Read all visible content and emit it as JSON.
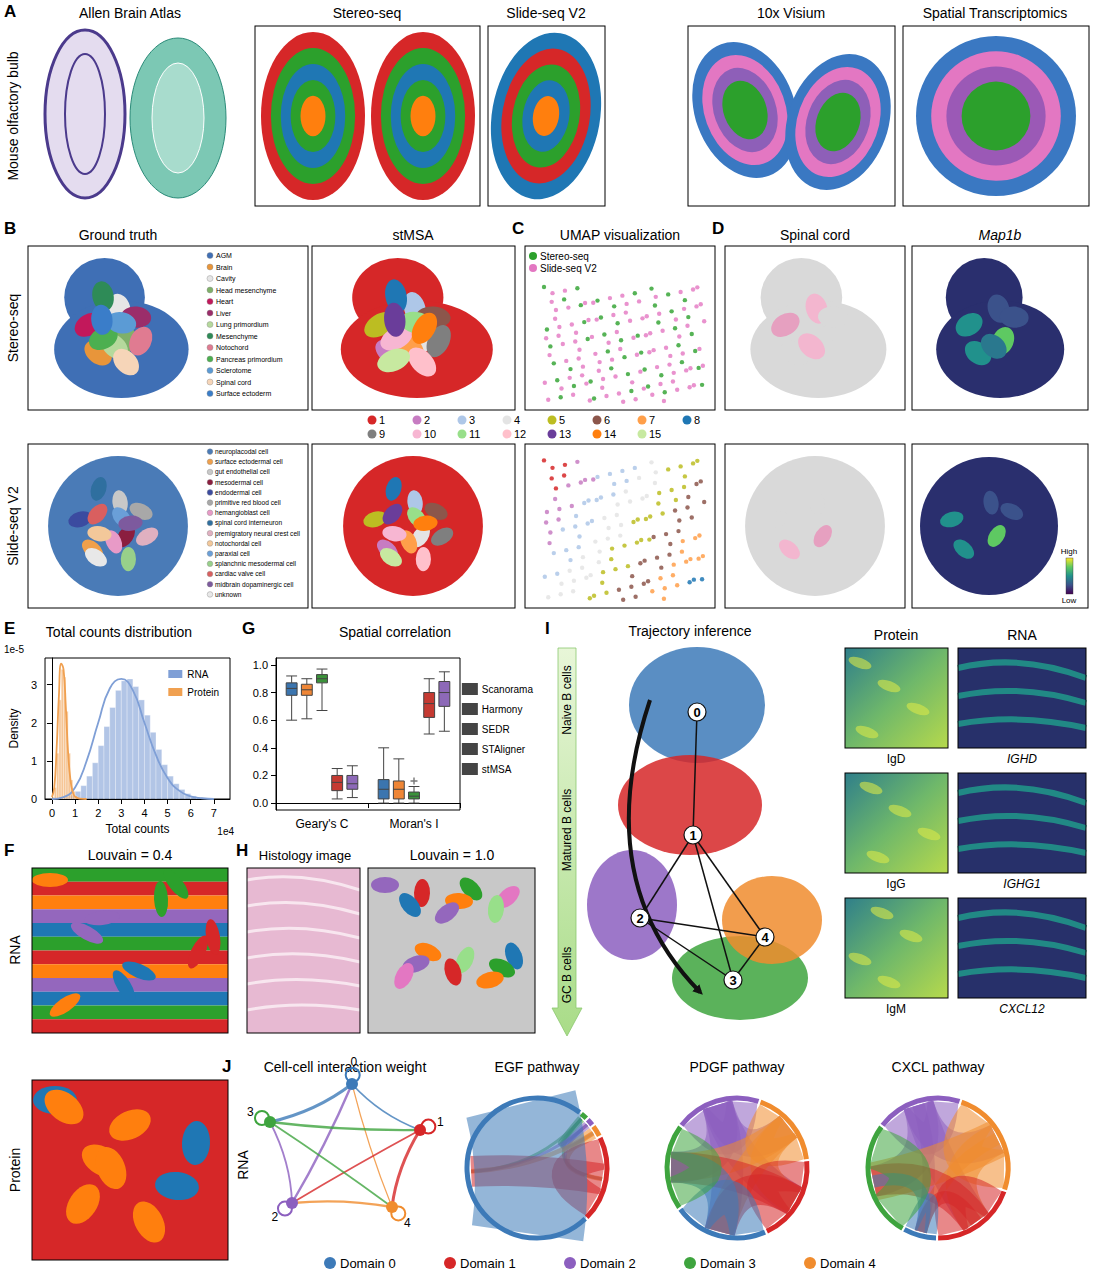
{
  "figure": {
    "A": {
      "letter": "A",
      "row_label": "Mouse olfactory bulb",
      "titles": [
        "Allen Brain Atlas",
        "Stereo-seq",
        "Slide-seq V2",
        "10x Visium",
        "Spatial Transcriptomics"
      ]
    },
    "B": {
      "letter": "B",
      "titles": [
        "Ground truth",
        "stMSA"
      ],
      "rows": [
        "Stereo-seq",
        "Slide-seq V2"
      ],
      "stereo_legend": [
        {
          "name": "AGM",
          "color": "#3f6fb5"
        },
        {
          "name": "Brain",
          "color": "#e8953a"
        },
        {
          "name": "Cavity",
          "color": "#e6e6e6"
        },
        {
          "name": "Head mesenchyme",
          "color": "#7fb069"
        },
        {
          "name": "Heart",
          "color": "#c2185b"
        },
        {
          "name": "Liver",
          "color": "#9b2d6a"
        },
        {
          "name": "Lung primordium",
          "color": "#b5d99c"
        },
        {
          "name": "Mesenchyme",
          "color": "#2e8b57"
        },
        {
          "name": "Notochord",
          "color": "#e07b91"
        },
        {
          "name": "Pancreas primordium",
          "color": "#4caf50"
        },
        {
          "name": "Sclerotome",
          "color": "#5b9bd5"
        },
        {
          "name": "Spinal cord",
          "color": "#f6d5b8"
        },
        {
          "name": "Surface ectoderm",
          "color": "#3a7dc9"
        }
      ],
      "slide_legend": [
        {
          "name": "neuroplacodal cell",
          "color": "#4a7bb7"
        },
        {
          "name": "surface ectodermal cell",
          "color": "#f0a04b"
        },
        {
          "name": "gut endothelial cell",
          "color": "#c8c8c8"
        },
        {
          "name": "mesodermal cell",
          "color": "#8b1e3f"
        },
        {
          "name": "endodermal cell",
          "color": "#3b4ba0"
        },
        {
          "name": "primitive red blood cell",
          "color": "#a8a8a8"
        },
        {
          "name": "hemangioblast cell",
          "color": "#e89ac7"
        },
        {
          "name": "spinal cord interneuron",
          "color": "#2f6f9f"
        },
        {
          "name": "premigratory neural crest cell",
          "color": "#e0b0c0"
        },
        {
          "name": "notochordal cell",
          "color": "#f3c89a"
        },
        {
          "name": "paraxial cell",
          "color": "#6a9fd8"
        },
        {
          "name": "splanchnic mesodermal cell",
          "color": "#98d08a"
        },
        {
          "name": "cardiac valve cell",
          "color": "#d95f5f"
        },
        {
          "name": "midbrain dopaminergic cell",
          "color": "#7d5a9e"
        },
        {
          "name": "unknown",
          "color": "#e8e8e8"
        }
      ],
      "clusters": {
        "labels": [
          "1",
          "2",
          "3",
          "4",
          "5",
          "6",
          "7",
          "8",
          "9",
          "10",
          "11",
          "12",
          "13",
          "14",
          "15"
        ],
        "colors": [
          "#d62728",
          "#c77cc2",
          "#aec7e8",
          "#e4e4e4",
          "#bcbd22",
          "#8c564b",
          "#ff9f4a",
          "#1f77b4",
          "#7f7f7f",
          "#f7b6d2",
          "#98df8a",
          "#ffc0cb",
          "#6a3d9a",
          "#ff7f0e",
          "#c7e9a0"
        ]
      }
    },
    "C": {
      "letter": "C",
      "title": "UMAP visualization",
      "legend": [
        {
          "name": "Stereo-seq",
          "color": "#2ca02c"
        },
        {
          "name": "Slide-seq V2",
          "color": "#e377c2"
        }
      ]
    },
    "D": {
      "letter": "D",
      "titles": [
        "Spinal cord",
        "Map1b"
      ],
      "colorbar": {
        "high": "High",
        "low": "Low"
      }
    },
    "F": {
      "letter": "F",
      "title": "Louvain = 0.4",
      "rows": [
        "RNA",
        "Protein"
      ]
    },
    "H": {
      "letter": "H",
      "titles": [
        "Histology image",
        "Louvain = 1.0"
      ]
    },
    "I": {
      "letter": "I",
      "title": "Trajectory inference",
      "stages": [
        "Naive B cells",
        "Matured B cells",
        "GC B cells"
      ],
      "nodes": [
        "0",
        "1",
        "2",
        "3",
        "4"
      ],
      "colors": [
        "#3d7ab8",
        "#d62728",
        "#8c5fbf",
        "#3ea43e",
        "#f08c2e"
      ],
      "edges": [
        [
          0,
          1
        ],
        [
          1,
          2
        ],
        [
          1,
          4
        ],
        [
          1,
          3
        ],
        [
          2,
          4
        ],
        [
          2,
          3
        ],
        [
          4,
          3
        ]
      ],
      "columns": [
        "Protein",
        "RNA"
      ],
      "protein": [
        "IgD",
        "IgG",
        "IgM"
      ],
      "rna": [
        "IGHD",
        "IGHG1",
        "CXCL12"
      ]
    },
    "J": {
      "letter": "J",
      "row": "RNA",
      "network_title": "Cell-cell interaction weight",
      "domains": [
        {
          "id": "0",
          "name": "Domain 0",
          "color": "#3d7ab8"
        },
        {
          "id": "1",
          "name": "Domain 1",
          "color": "#d62728"
        },
        {
          "id": "2",
          "name": "Domain 2",
          "color": "#8c5fbf"
        },
        {
          "id": "3",
          "name": "Domain 3",
          "color": "#3ea43e"
        },
        {
          "id": "4",
          "name": "Domain 4",
          "color": "#f08c2e"
        }
      ],
      "pathways": [
        {
          "title": "EGF pathway",
          "sectors": [
            {
              "domain": "3",
              "share": 0.02
            },
            {
              "domain": "2",
              "share": 0.02
            },
            {
              "domain": "4",
              "share": 0.03
            },
            {
              "domain": "1",
              "share": 0.2
            },
            {
              "domain": "0",
              "share": 0.73
            }
          ]
        },
        {
          "title": "PDGF pathway",
          "sectors": [
            {
              "domain": "2",
              "share": 0.2
            },
            {
              "domain": "4",
              "share": 0.18
            },
            {
              "domain": "1",
              "share": 0.2
            },
            {
              "domain": "0",
              "share": 0.22
            },
            {
              "domain": "3",
              "share": 0.2
            }
          ]
        },
        {
          "title": "CXCL pathway",
          "sectors": [
            {
              "domain": "2",
              "share": 0.2
            },
            {
              "domain": "4",
              "share": 0.25
            },
            {
              "domain": "1",
              "share": 0.2
            },
            {
              "domain": "0",
              "share": 0.08
            },
            {
              "domain": "3",
              "share": 0.27
            }
          ]
        }
      ]
    }
  },
  "chart_data": [
    {
      "type": "histogram",
      "panel_letter": "E",
      "title": "Total counts distribution",
      "x_label": "Total counts",
      "y_label": "Density",
      "x_multiplier_label": "1e4",
      "y_multiplier_label": "1e-5",
      "series": [
        {
          "name": "RNA",
          "color": "#7f9fd6",
          "bins": [
            0,
            0.25,
            0.5,
            0.75,
            1,
            1.25,
            1.5,
            1.75,
            2,
            2.25,
            2.5,
            2.75,
            3,
            3.25,
            3.5,
            3.75,
            4,
            4.25,
            4.5,
            4.75,
            5,
            5.25,
            5.5,
            5.75,
            6,
            6.25,
            6.5,
            6.75,
            7
          ],
          "counts": [
            0,
            0.02,
            0.05,
            0.1,
            0.2,
            0.35,
            0.6,
            0.95,
            1.4,
            1.9,
            2.4,
            2.85,
            3.1,
            3.15,
            2.95,
            2.6,
            2.2,
            1.75,
            1.3,
            0.9,
            0.6,
            0.4,
            0.25,
            0.14,
            0.08,
            0.04,
            0.02,
            0.01
          ],
          "kde": {
            "x": [
              0,
              0.5,
              1,
              1.5,
              2,
              2.5,
              3,
              3.5,
              4,
              4.5,
              5,
              5.5,
              6,
              6.5,
              7
            ],
            "y": [
              0,
              0.05,
              0.3,
              1.0,
              2.0,
              2.9,
              3.15,
              2.85,
              2.0,
              1.15,
              0.55,
              0.22,
              0.07,
              0.02,
              0
            ]
          }
        },
        {
          "name": "Protein",
          "color": "#f0a050",
          "bins": [
            0,
            0.1,
            0.2,
            0.3,
            0.4,
            0.5,
            0.6,
            0.7,
            0.8,
            0.9,
            1,
            1.1,
            1.2,
            1.3,
            1.4,
            1.5
          ],
          "counts": [
            0.05,
            0.3,
            1.2,
            2.6,
            3.4,
            3.2,
            2.3,
            1.2,
            0.5,
            0.2,
            0.08,
            0.03,
            0.01,
            0,
            0
          ],
          "kde": {
            "x": [
              0,
              0.1,
              0.2,
              0.3,
              0.4,
              0.5,
              0.6,
              0.7,
              0.8,
              0.9,
              1,
              1.2,
              1.5
            ],
            "y": [
              0.05,
              0.3,
              1.3,
              2.7,
              3.55,
              3.4,
              2.4,
              1.2,
              0.5,
              0.18,
              0.06,
              0.01,
              0
            ]
          }
        }
      ],
      "xlim": [
        -0.3,
        7.7
      ],
      "xticks": [
        0,
        1,
        2,
        3,
        4,
        5,
        6,
        7
      ],
      "ylim": [
        0,
        3.7
      ],
      "yticks": [
        0,
        1,
        2,
        3
      ],
      "grid": false,
      "legend": "upper right"
    },
    {
      "type": "boxplot",
      "panel_letter": "G",
      "title": "Spatial correlation",
      "categories": [
        "Geary's C",
        "Moran's I"
      ],
      "series": [
        {
          "name": "Scanorama",
          "color": "#3b75af",
          "values": [
            [
              0.6,
              0.78,
              0.83,
              0.87,
              0.92
            ],
            [
              0.0,
              0.03,
              0.1,
              0.17,
              0.4
            ]
          ]
        },
        {
          "name": "Harmony",
          "color": "#ef8636",
          "values": [
            [
              0.61,
              0.78,
              0.82,
              0.86,
              0.9
            ],
            [
              0.0,
              0.03,
              0.1,
              0.16,
              0.32
            ]
          ]
        },
        {
          "name": "SEDR",
          "color": "#3b923a",
          "values": [
            [
              0.67,
              0.87,
              0.9,
              0.93,
              0.97
            ],
            [
              0.0,
              0.03,
              0.05,
              0.08,
              0.12
            ]
          ],
          "outliers": [
            {
              "category": "Moran's I",
              "value": 0.16
            }
          ]
        },
        {
          "name": "STAligner",
          "color": "#c53a32",
          "values": [
            [
              0.03,
              0.09,
              0.15,
              0.2,
              0.25
            ],
            [
              0.5,
              0.62,
              0.72,
              0.8,
              0.9
            ]
          ]
        },
        {
          "name": "stMSA",
          "color": "#8d69b8",
          "values": [
            [
              0.04,
              0.1,
              0.14,
              0.2,
              0.27
            ],
            [
              0.52,
              0.7,
              0.8,
              0.88,
              0.95
            ]
          ]
        }
      ],
      "ylim": [
        -0.05,
        1.05
      ],
      "yticks": [
        {
          "value": 0,
          "label": "0.0"
        },
        {
          "value": 0.2,
          "label": "0.2"
        },
        {
          "value": 0.4,
          "label": "0.4"
        },
        {
          "value": 0.6,
          "label": "0.6"
        },
        {
          "value": 0.8,
          "label": "0.8"
        },
        {
          "value": 1,
          "label": "1.0"
        }
      ],
      "grid": false,
      "legend": "right"
    }
  ]
}
